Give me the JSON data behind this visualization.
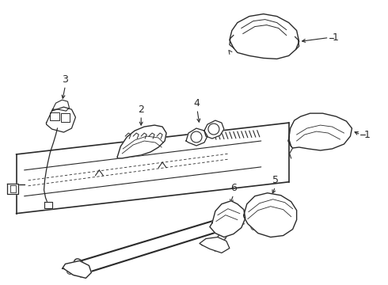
{
  "background_color": "#ffffff",
  "line_color": "#2a2a2a",
  "figure_width": 4.9,
  "figure_height": 3.6,
  "dpi": 100
}
